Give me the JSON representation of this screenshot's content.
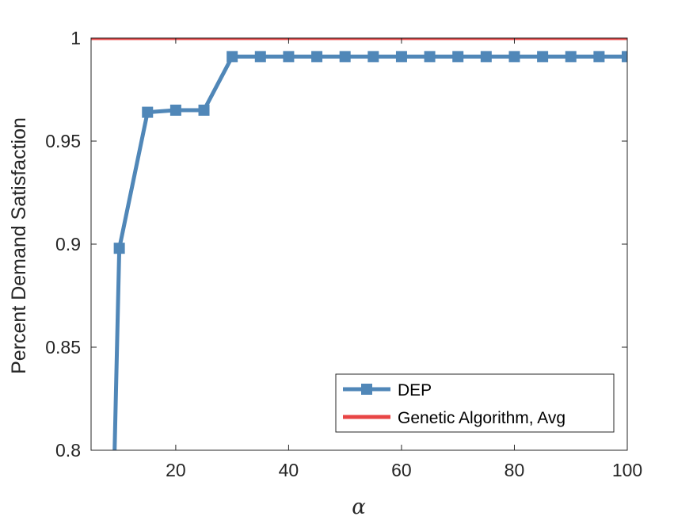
{
  "chart_data": {
    "type": "line",
    "title": "",
    "xlabel": "α",
    "ylabel": "Percent Demand Satisfaction",
    "xlim": [
      5,
      100
    ],
    "ylim": [
      0.8,
      1.0
    ],
    "xticks": [
      20,
      40,
      60,
      80,
      100
    ],
    "yticks": [
      0.8,
      0.85,
      0.9,
      0.95,
      1.0
    ],
    "ytick_labels": [
      "0.8",
      "0.85",
      "0.9",
      "0.95",
      "1"
    ],
    "grid": false,
    "legend_position": "bottom-right",
    "series": [
      {
        "name": "DEP",
        "color": "#5087B8",
        "marker": "square",
        "x": [
          9,
          10,
          15,
          20,
          25,
          30,
          35,
          40,
          45,
          50,
          55,
          60,
          65,
          70,
          75,
          80,
          85,
          90,
          95,
          100
        ],
        "y": [
          0.78,
          0.898,
          0.964,
          0.965,
          0.965,
          0.991,
          0.991,
          0.991,
          0.991,
          0.991,
          0.991,
          0.991,
          0.991,
          0.991,
          0.991,
          0.991,
          0.991,
          0.991,
          0.991,
          0.991
        ]
      },
      {
        "name": "Genetic Algorithm, Avg",
        "color": "#E84545",
        "marker": "none",
        "x": [
          5,
          100
        ],
        "y": [
          1.0,
          1.0
        ]
      }
    ]
  }
}
